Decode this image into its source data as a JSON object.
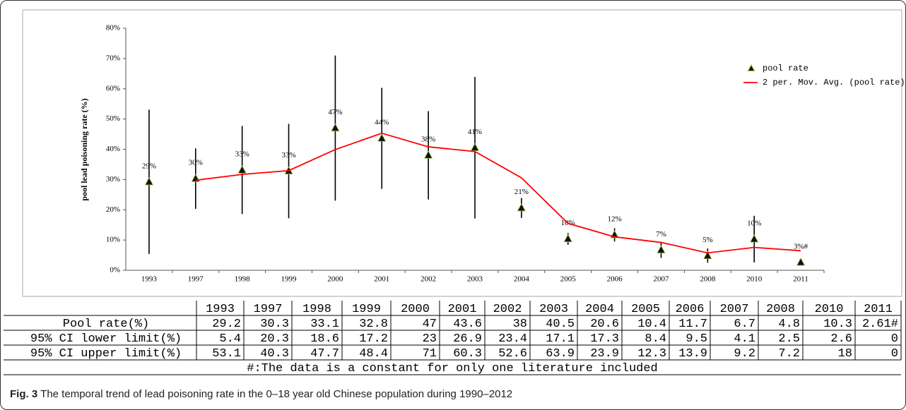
{
  "chart_data": {
    "type": "scatter",
    "y_label": "pool lead poisoning rate (%)",
    "categories": [
      "1993",
      "1997",
      "1998",
      "1999",
      "2000",
      "2001",
      "2002",
      "2003",
      "2004",
      "2005",
      "2006",
      "2007",
      "2008",
      "2010",
      "2011"
    ],
    "ylim": [
      0,
      80
    ],
    "yticks": [
      {
        "value": 0,
        "label": "0%"
      },
      {
        "value": 10,
        "label": "10%"
      },
      {
        "value": 20,
        "label": "20%"
      },
      {
        "value": 30,
        "label": "30%"
      },
      {
        "value": 40,
        "label": "40%"
      },
      {
        "value": 50,
        "label": "50%"
      },
      {
        "value": 60,
        "label": "60%"
      },
      {
        "value": 70,
        "label": "70%"
      },
      {
        "value": 80,
        "label": "80%"
      }
    ],
    "legend": "upper right",
    "series": [
      {
        "name": "pool rate",
        "color": "#111111",
        "marker": "triangle",
        "values": [
          29.2,
          30.3,
          33.1,
          32.8,
          47,
          43.6,
          38,
          40.5,
          20.6,
          10.4,
          11.7,
          6.7,
          4.8,
          10.3,
          2.61
        ],
        "lower": [
          5.4,
          20.3,
          18.6,
          17.2,
          23,
          26.9,
          23.4,
          17.1,
          17.3,
          8.4,
          9.5,
          4.1,
          2.5,
          2.6,
          0
        ],
        "upper": [
          53.1,
          40.3,
          47.7,
          48.4,
          71,
          60.3,
          52.6,
          63.9,
          23.9,
          12.3,
          13.9,
          9.2,
          7.2,
          18,
          0
        ],
        "value_labels": [
          "29%",
          "30%",
          "33%",
          "33%",
          "47%",
          "44%",
          "38%",
          "41%",
          "21%",
          "10%",
          "12%",
          "7%",
          "5%",
          "10%",
          "3%#"
        ]
      },
      {
        "name": "2 per. Mov. Avg. (pool rate)",
        "color": "#ff0000",
        "marker": "line",
        "values": [
          null,
          29.75,
          31.7,
          32.95,
          39.9,
          45.3,
          40.8,
          39.25,
          30.55,
          15.5,
          11.05,
          9.2,
          5.75,
          7.55,
          6.455
        ]
      }
    ]
  },
  "table": {
    "header": [
      "1993",
      "1997",
      "1998",
      "1999",
      "2000",
      "2001",
      "2002",
      "2003",
      "2004",
      "2005",
      "2006",
      "2007",
      "2008",
      "2010",
      "2011"
    ],
    "rows": [
      {
        "label": "Pool rate(%)",
        "cells": [
          "29.2",
          "30.3",
          "33.1",
          "32.8",
          "47",
          "43.6",
          "38",
          "40.5",
          "20.6",
          "10.4",
          "11.7",
          "6.7",
          "4.8",
          "10.3",
          "2.61#"
        ]
      },
      {
        "label": "95% CI lower limit(%)",
        "cells": [
          "5.4",
          "20.3",
          "18.6",
          "17.2",
          "23",
          "26.9",
          "23.4",
          "17.1",
          "17.3",
          "8.4",
          "9.5",
          "4.1",
          "2.5",
          "2.6",
          "0"
        ]
      },
      {
        "label": "95% CI upper limit(%)",
        "cells": [
          "53.1",
          "40.3",
          "47.7",
          "48.4",
          "71",
          "60.3",
          "52.6",
          "63.9",
          "23.9",
          "12.3",
          "13.9",
          "9.2",
          "7.2",
          "18",
          "0"
        ]
      }
    ],
    "note": "#:The data is a constant for only one literature included"
  },
  "caption": {
    "label": "Fig. 3",
    "text": "The temporal trend of lead poisoning rate in the 0–18 year old Chinese population during 1990–2012"
  }
}
